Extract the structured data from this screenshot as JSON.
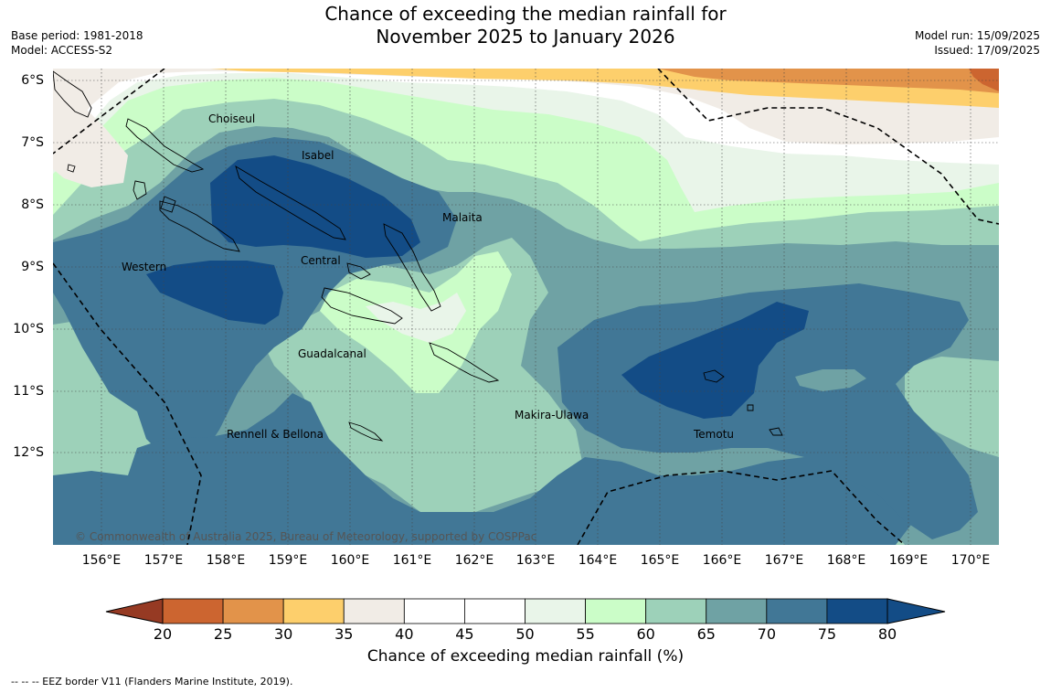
{
  "header": {
    "title_line1": "Chance of exceeding the median rainfall for",
    "title_line2": "November 2025 to January 2026",
    "base_period": "Base period: 1981-2018",
    "model": "Model: ACCESS-S2",
    "model_run": "Model run: 15/09/2025",
    "issued": "Issued: 17/09/2025"
  },
  "map": {
    "lat_labels": [
      "6°S",
      "7°S",
      "8°S",
      "9°S",
      "10°S",
      "11°S",
      "12°S"
    ],
    "lon_labels": [
      "156°E",
      "157°E",
      "158°E",
      "159°E",
      "160°E",
      "161°E",
      "162°E",
      "163°E",
      "164°E",
      "165°E",
      "166°E",
      "167°E",
      "168°E",
      "169°E",
      "170°E"
    ],
    "places": {
      "choiseul": "Choiseul",
      "isabel": "Isabel",
      "malaita": "Malaita",
      "western": "Western",
      "central": "Central",
      "guadalcanal": "Guadalcanal",
      "makira": "Makira-Ulawa",
      "rennell": "Rennell & Bellona",
      "temotu": "Temotu"
    },
    "copyright": "© Commonwealth of Australia 2025, Bureau of Meteorology, supported by COSPPac"
  },
  "colorbar": {
    "ticks": [
      "20",
      "25",
      "30",
      "35",
      "40",
      "45",
      "50",
      "55",
      "60",
      "65",
      "70",
      "75",
      "80"
    ],
    "colors": [
      "#b0482a",
      "#cc6530",
      "#e2934a",
      "#fdcf6c",
      "#f1ece6",
      "#ffffff",
      "#ffffff",
      "#e9f5e9",
      "#cbfdc8",
      "#9dd1b9",
      "#6fa2a4",
      "#417796",
      "#134c86"
    ],
    "under_color": "#963a23",
    "over_color": "#134c86",
    "label": "Chance of exceeding median rainfall (%)"
  },
  "footnote": "--  --  -- EEZ border V11 (Flanders Marine Institute, 2019)."
}
